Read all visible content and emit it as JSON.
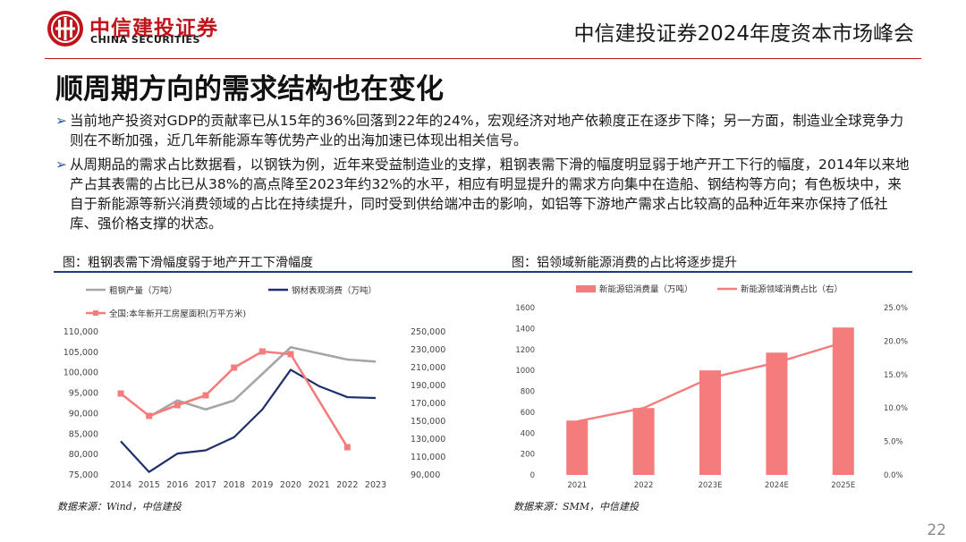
{
  "header": {
    "brand_cn": "中信建投证券",
    "brand_en": "CHINA SECURITIES",
    "conference_title": "中信建投证券2024年度资本市场峰会",
    "accent_color": "#c0141a"
  },
  "page": {
    "title": "顺周期方向的需求结构也在变化",
    "bullets": [
      "当前地产投资对GDP的贡献率已从15年的36%回落到22年的24%，宏观经济对地产依赖度正在逐步下降；另一方面，制造业全球竞争力则在不断加强，近几年新能源车等优势产业的出海加速已体现出相关信号。",
      "从周期品的需求占比数据看，以钢铁为例，近年来受益制造业的支撑，粗钢表需下滑的幅度明显弱于地产开工下行的幅度，2014年以来地产占其表需的占比已从38%的高点降至2023年约32%的水平，相应有明显提升的需求方向集中在造船、钢结构等方向；有色板块中，来自于新能源等新兴消费领域的占比在持续提升，同时受到供给端冲击的影响，如铝等下游地产需求占比较高的品种近年来亦保持了低社库、强价格支撑的状态。"
    ],
    "page_number": "22"
  },
  "left_figure": {
    "caption": "图：粗钢表需下滑幅度弱于地产开工下滑幅度",
    "source": "数据来源：Wind，中信建投"
  },
  "right_figure": {
    "caption": "图：铝领域新能源消费的占比将逐步提升",
    "source": "数据来源：SMM，中信建投"
  },
  "chart_data": [
    {
      "type": "line",
      "x": [
        "2014",
        "2015",
        "2016",
        "2017",
        "2018",
        "2019",
        "2020",
        "2021",
        "2022",
        "2023"
      ],
      "y_left": {
        "ylim": [
          75000,
          110000
        ],
        "ticks": [
          "75,000",
          "80,000",
          "85,000",
          "90,000",
          "95,000",
          "100,000",
          "105,000",
          "110,000"
        ]
      },
      "y_right": {
        "ylim": [
          90000,
          250000
        ],
        "ticks": [
          "90,000",
          "110,000",
          "130,000",
          "150,000",
          "170,000",
          "190,000",
          "210,000",
          "230,000",
          "250,000"
        ]
      },
      "series": [
        {
          "name": "粗钢产量（万吨）",
          "axis": "left",
          "color": "#a6a6a6",
          "values": [
            null,
            89000,
            93000,
            90800,
            93000,
            99500,
            106000,
            104500,
            103000,
            102500
          ]
        },
        {
          "name": "钢材表观消费（万吨）",
          "axis": "left",
          "color": "#1f2f6b",
          "values": [
            83000,
            75500,
            80000,
            80800,
            84000,
            90800,
            100500,
            96500,
            93800,
            93600
          ]
        },
        {
          "name": "全国:本年新开工房屋面积(万平方米)",
          "axis": "right",
          "color": "#f47c7c",
          "values": [
            180000,
            155000,
            167000,
            178000,
            209000,
            227000,
            224000,
            null,
            120000,
            null
          ]
        }
      ],
      "legend_position": "top",
      "grid": false
    },
    {
      "type": "bar",
      "categories": [
        "2021",
        "2022",
        "2023E",
        "2024E",
        "2025E"
      ],
      "y_left": {
        "ylim": [
          0,
          1600
        ],
        "ticks": [
          "0",
          "200",
          "400",
          "600",
          "800",
          "1000",
          "1200",
          "1400",
          "1600"
        ]
      },
      "y_right": {
        "ylim": [
          0,
          25
        ],
        "ticks": [
          "0.0%",
          "5.0%",
          "10.0%",
          "15.0%",
          "20.0%",
          "25.0%"
        ]
      },
      "series": [
        {
          "name": "新能源铝消费量（万吨）",
          "type": "bar",
          "axis": "left",
          "color": "#f47c7c",
          "values": [
            520,
            640,
            1000,
            1170,
            1410
          ]
        },
        {
          "name": "新能源领域消费占比（右）",
          "type": "line",
          "axis": "right",
          "color": "#f47c7c",
          "values": [
            8.0,
            10.0,
            14.5,
            16.8,
            19.8
          ]
        }
      ],
      "legend_position": "top",
      "grid": false
    }
  ]
}
